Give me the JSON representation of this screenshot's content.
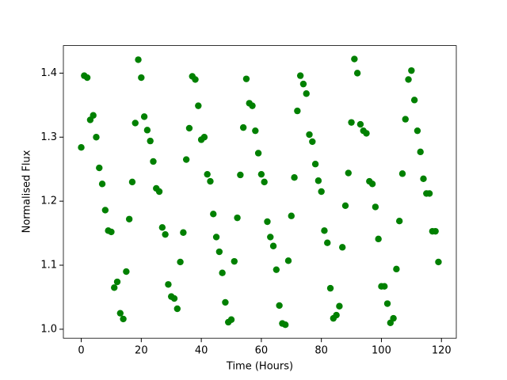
{
  "chart_data": {
    "type": "scatter",
    "x_label": "Time (Hours)",
    "y_label": "Normalised Flux",
    "x": [
      0,
      1,
      2,
      3,
      4,
      5,
      6,
      7,
      8,
      9,
      10,
      11,
      12,
      13,
      14,
      15,
      16,
      17,
      18,
      19,
      20,
      21,
      22,
      23,
      24,
      25,
      26,
      27,
      28,
      29,
      30,
      31,
      32,
      33,
      34,
      35,
      36,
      37,
      38,
      39,
      40,
      41,
      42,
      43,
      44,
      45,
      46,
      47,
      48,
      49,
      50,
      51,
      52,
      53,
      54,
      55,
      56,
      57,
      58,
      59,
      60,
      61,
      62,
      63,
      64,
      65,
      66,
      67,
      68,
      69,
      70,
      71,
      72,
      73,
      74,
      75,
      76,
      77,
      78,
      79,
      80,
      81,
      82,
      83,
      84,
      85,
      86,
      87,
      88,
      89,
      90,
      91,
      92,
      93,
      94,
      95,
      96,
      97,
      98,
      99,
      100,
      101,
      102,
      103,
      104,
      105,
      106,
      107,
      108,
      109,
      110,
      111,
      112,
      113,
      114,
      115,
      116,
      117,
      118,
      119
    ],
    "values": [
      1.284,
      1.396,
      1.393,
      1.327,
      1.334,
      1.3,
      1.252,
      1.227,
      1.186,
      1.154,
      1.152,
      1.065,
      1.074,
      1.025,
      1.016,
      1.09,
      1.172,
      1.23,
      1.322,
      1.421,
      1.393,
      1.332,
      1.311,
      1.294,
      1.262,
      1.22,
      1.215,
      1.159,
      1.148,
      1.07,
      1.051,
      1.048,
      1.032,
      1.105,
      1.151,
      1.265,
      1.314,
      1.395,
      1.39,
      1.349,
      1.296,
      1.3,
      1.242,
      1.231,
      1.18,
      1.144,
      1.121,
      1.088,
      1.042,
      1.011,
      1.015,
      1.106,
      1.174,
      1.241,
      1.315,
      1.391,
      1.353,
      1.349,
      1.31,
      1.275,
      1.242,
      1.23,
      1.168,
      1.144,
      1.13,
      1.093,
      1.037,
      1.009,
      1.007,
      1.107,
      1.177,
      1.237,
      1.341,
      1.396,
      1.383,
      1.368,
      1.304,
      1.293,
      1.258,
      1.232,
      1.215,
      1.154,
      1.135,
      1.064,
      1.017,
      1.022,
      1.036,
      1.128,
      1.193,
      1.244,
      1.323,
      1.422,
      1.4,
      1.32,
      1.31,
      1.306,
      1.231,
      1.227,
      1.191,
      1.141,
      1.067,
      1.067,
      1.04,
      1.01,
      1.017,
      1.094,
      1.169,
      1.243,
      1.328,
      1.39,
      1.404,
      1.358,
      1.31,
      1.277,
      1.235,
      1.212,
      1.212,
      1.153,
      1.153,
      1.105
    ],
    "color": "#008000",
    "xlim": [
      -5.95,
      124.95
    ],
    "xticks": [
      0,
      20,
      40,
      60,
      80,
      100,
      120
    ],
    "ylim": [
      0.986,
      1.443
    ],
    "yticks": [
      {
        "value": 1,
        "label": "1.0"
      },
      1.1,
      1.2,
      1.3,
      1.4
    ]
  }
}
